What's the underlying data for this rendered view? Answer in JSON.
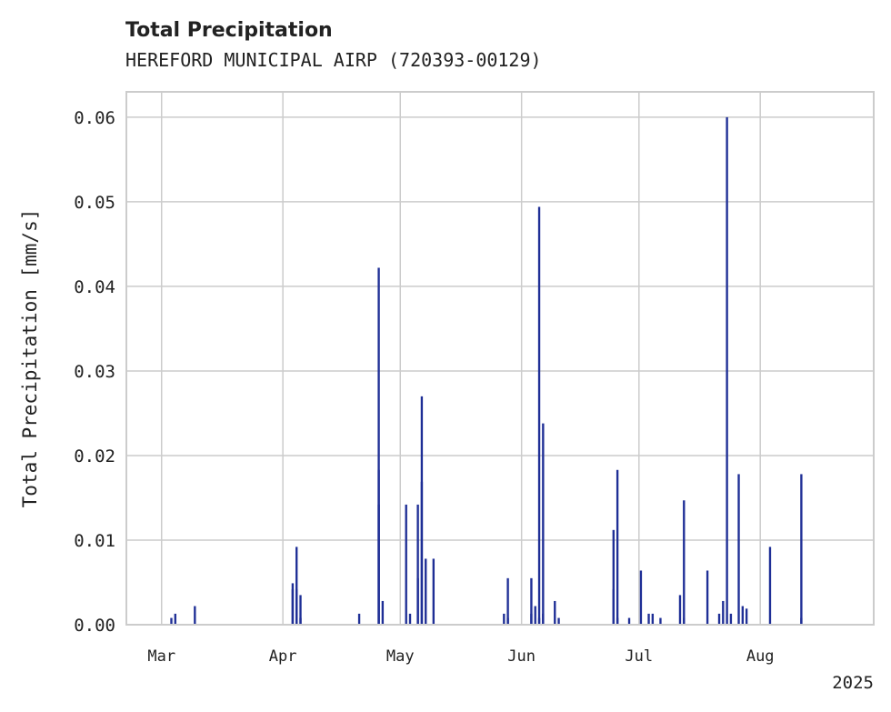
{
  "chart_data": {
    "type": "bar",
    "title": "Total Precipitation",
    "subtitle": "HEREFORD MUNICIPAL AIRP (720393-00129)",
    "ylabel": "Total Precipitation [mm/s]",
    "xlabel": "",
    "year_label": "2025",
    "x_range": [
      "2025-02-20",
      "2025-08-30"
    ],
    "ylim": [
      0,
      0.063
    ],
    "yticks": [
      0.0,
      0.01,
      0.02,
      0.03,
      0.04,
      0.05,
      0.06
    ],
    "ytick_labels": [
      "0.00",
      "0.01",
      "0.02",
      "0.03",
      "0.04",
      "0.05",
      "0.06"
    ],
    "xticks": [
      {
        "date": "2025-03-01",
        "label": "Mar"
      },
      {
        "date": "2025-04-01",
        "label": "Apr"
      },
      {
        "date": "2025-05-01",
        "label": "May"
      },
      {
        "date": "2025-06-01",
        "label": "Jun"
      },
      {
        "date": "2025-07-01",
        "label": "Jul"
      },
      {
        "date": "2025-08-01",
        "label": "Aug"
      }
    ],
    "grid": true,
    "bar_color": "#1f2f96",
    "series": [
      {
        "x": [
          "2025-03-03",
          "2025-03-04",
          "2025-03-09",
          "2025-04-03",
          "2025-04-03",
          "2025-04-04",
          "2025-04-04",
          "2025-04-05",
          "2025-04-05",
          "2025-04-20",
          "2025-04-25",
          "2025-04-25",
          "2025-04-25",
          "2025-04-26",
          "2025-05-02",
          "2025-05-03",
          "2025-05-05",
          "2025-05-05",
          "2025-05-06",
          "2025-05-06",
          "2025-05-07",
          "2025-05-09",
          "2025-05-27",
          "2025-05-28",
          "2025-05-28",
          "2025-06-03",
          "2025-06-03",
          "2025-06-04",
          "2025-06-05",
          "2025-06-05",
          "2025-06-06",
          "2025-06-06",
          "2025-06-09",
          "2025-06-10",
          "2025-06-24",
          "2025-06-24",
          "2025-06-25",
          "2025-06-25",
          "2025-06-28",
          "2025-07-01",
          "2025-07-03",
          "2025-07-04",
          "2025-07-06",
          "2025-07-11",
          "2025-07-12",
          "2025-07-12",
          "2025-07-18",
          "2025-07-21",
          "2025-07-22",
          "2025-07-23",
          "2025-07-24",
          "2025-07-26",
          "2025-07-27",
          "2025-07-28",
          "2025-08-03",
          "2025-08-11",
          "2025-08-11"
        ],
        "values": [
          0.0008,
          0.0013,
          0.0022,
          0.0042,
          0.0049,
          0.0092,
          0.0042,
          0.0035,
          0.0008,
          0.0013,
          0.0183,
          0.0422,
          0.0142,
          0.0028,
          0.0142,
          0.0013,
          0.0142,
          0.0055,
          0.027,
          0.0169,
          0.0078,
          0.0078,
          0.0013,
          0.0008,
          0.0055,
          0.0013,
          0.0055,
          0.0022,
          0.0494,
          0.0008,
          0.0238,
          0.0013,
          0.0028,
          0.0008,
          0.0042,
          0.0112,
          0.0183,
          0.0008,
          0.0008,
          0.0064,
          0.0013,
          0.0013,
          0.0008,
          0.0035,
          0.0147,
          0.0008,
          0.0064,
          0.0013,
          0.0028,
          0.06,
          0.0013,
          0.0178,
          0.0022,
          0.0019,
          0.0092,
          0.0008,
          0.0178
        ]
      }
    ]
  }
}
